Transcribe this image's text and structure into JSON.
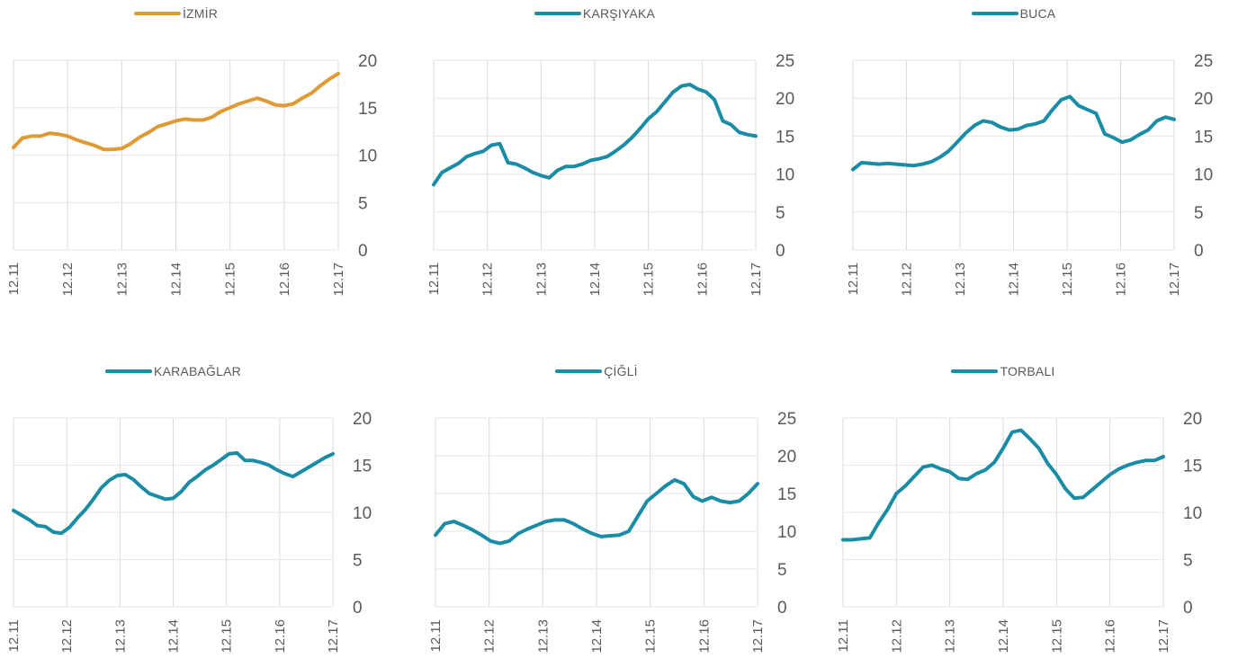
{
  "chart_data": [
    {
      "type": "line",
      "title": "",
      "series": [
        {
          "name": "İZMİR",
          "color": "#E09A34",
          "values": [
            10.8,
            11.8,
            12.0,
            12.0,
            12.3,
            12.2,
            12.0,
            11.6,
            11.3,
            11.0,
            10.6,
            10.6,
            10.7,
            11.2,
            11.9,
            12.4,
            13.0,
            13.3,
            13.6,
            13.8,
            13.7,
            13.7,
            14.0,
            14.6,
            15.0,
            15.4,
            15.7,
            16.0,
            15.7,
            15.3,
            15.2,
            15.4,
            16.0,
            16.5,
            17.3,
            18.0,
            18.6
          ]
        }
      ],
      "x_tick_labels": [
        "12.11",
        "12.12",
        "12.13",
        "12.14",
        "12.15",
        "12.16",
        "12.17"
      ],
      "y_ticks": [
        0,
        5,
        10,
        15,
        20
      ],
      "ylim": [
        0,
        20
      ],
      "grid": "vertical",
      "legend": "top-center"
    },
    {
      "type": "line",
      "title": "",
      "series": [
        {
          "name": "KARŞIYAKA",
          "color": "#1A8CA6",
          "values": [
            8.6,
            10.2,
            10.8,
            11.4,
            12.3,
            12.7,
            13.0,
            13.8,
            14.0,
            11.5,
            11.3,
            10.8,
            10.2,
            9.8,
            9.5,
            10.5,
            11.0,
            11.0,
            11.3,
            11.8,
            12.0,
            12.3,
            13.0,
            13.8,
            14.8,
            16.0,
            17.3,
            18.2,
            19.5,
            20.8,
            21.6,
            21.8,
            21.2,
            20.8,
            19.8,
            17.0,
            16.5,
            15.5,
            15.2,
            15.0
          ]
        }
      ],
      "x_tick_labels": [
        "12.11",
        "12.12",
        "12.13",
        "12.14",
        "12.15",
        "12.16",
        "12.17"
      ],
      "y_ticks": [
        0,
        5,
        10,
        15,
        20,
        25
      ],
      "ylim": [
        0,
        25
      ],
      "grid": "vertical",
      "legend": "top-center"
    },
    {
      "type": "line",
      "title": "",
      "series": [
        {
          "name": "BUCA",
          "color": "#1A8CA6",
          "values": [
            10.6,
            11.5,
            11.4,
            11.3,
            11.4,
            11.3,
            11.2,
            11.1,
            11.3,
            11.6,
            12.2,
            13.0,
            14.2,
            15.4,
            16.4,
            17.0,
            16.8,
            16.2,
            15.8,
            15.9,
            16.4,
            16.6,
            17.0,
            18.5,
            19.8,
            20.2,
            19.0,
            18.5,
            18.0,
            15.3,
            14.8,
            14.2,
            14.5,
            15.2,
            15.8,
            17.0,
            17.5,
            17.2
          ]
        }
      ],
      "x_tick_labels": [
        "12.11",
        "12.12",
        "12.13",
        "12.14",
        "12.15",
        "12.16",
        "12.17"
      ],
      "y_ticks": [
        0,
        5,
        10,
        15,
        20,
        25
      ],
      "ylim": [
        0,
        25
      ],
      "grid": "vertical",
      "legend": "top-center"
    },
    {
      "type": "line",
      "title": "",
      "series": [
        {
          "name": "KARABAĞLAR",
          "color": "#1A8CA6",
          "values": [
            10.2,
            9.7,
            9.2,
            8.6,
            8.5,
            7.9,
            7.8,
            8.4,
            9.4,
            10.3,
            11.4,
            12.6,
            13.4,
            13.9,
            14.0,
            13.5,
            12.7,
            12.0,
            11.7,
            11.4,
            11.5,
            12.2,
            13.2,
            13.8,
            14.5,
            15.0,
            15.6,
            16.2,
            16.3,
            15.5,
            15.5,
            15.3,
            15.0,
            14.5,
            14.1,
            13.8,
            14.3,
            14.8,
            15.3,
            15.8,
            16.2
          ]
        }
      ],
      "x_tick_labels": [
        "12.11",
        "12.12",
        "12.13",
        "12.14",
        "12.15",
        "12.16",
        "12.17"
      ],
      "y_ticks": [
        0,
        5,
        10,
        15,
        20
      ],
      "ylim": [
        0,
        20
      ],
      "grid": "vertical",
      "legend": "top-center"
    },
    {
      "type": "line",
      "title": "",
      "series": [
        {
          "name": "ÇİĞLİ",
          "color": "#1A8CA6",
          "values": [
            9.5,
            11.0,
            11.3,
            10.8,
            10.2,
            9.5,
            8.7,
            8.4,
            8.7,
            9.7,
            10.3,
            10.8,
            11.3,
            11.5,
            11.5,
            11.0,
            10.3,
            9.7,
            9.3,
            9.4,
            9.5,
            10.0,
            12.0,
            14.0,
            15.0,
            16.0,
            16.8,
            16.3,
            14.6,
            14.0,
            14.5,
            14.0,
            13.8,
            14.0,
            15.0,
            16.3
          ]
        }
      ],
      "x_tick_labels": [
        "12.11",
        "12.12",
        "12.13",
        "12.14",
        "12.15",
        "12.16",
        "12.17"
      ],
      "y_ticks": [
        0,
        5,
        10,
        15,
        20,
        25
      ],
      "ylim": [
        0,
        25
      ],
      "grid": "vertical",
      "legend": "top-center"
    },
    {
      "type": "line",
      "title": "",
      "series": [
        {
          "name": "TORBALI",
          "color": "#1A8CA6",
          "values": [
            7.1,
            7.1,
            7.2,
            7.3,
            8.9,
            10.3,
            12.0,
            12.8,
            13.8,
            14.8,
            15.0,
            14.6,
            14.3,
            13.6,
            13.5,
            14.1,
            14.5,
            15.3,
            16.8,
            18.5,
            18.7,
            17.8,
            16.8,
            15.2,
            14.0,
            12.5,
            11.5,
            11.6,
            12.4,
            13.2,
            14.0,
            14.6,
            15.0,
            15.3,
            15.5,
            15.5,
            15.9
          ]
        }
      ],
      "x_tick_labels": [
        "12.11",
        "12.12",
        "12.13",
        "12.14",
        "12.15",
        "12.16",
        "12.17"
      ],
      "y_ticks": [
        0,
        5,
        10,
        15,
        20
      ],
      "ylim": [
        0,
        20
      ],
      "grid": "vertical",
      "legend": "top-center"
    }
  ]
}
